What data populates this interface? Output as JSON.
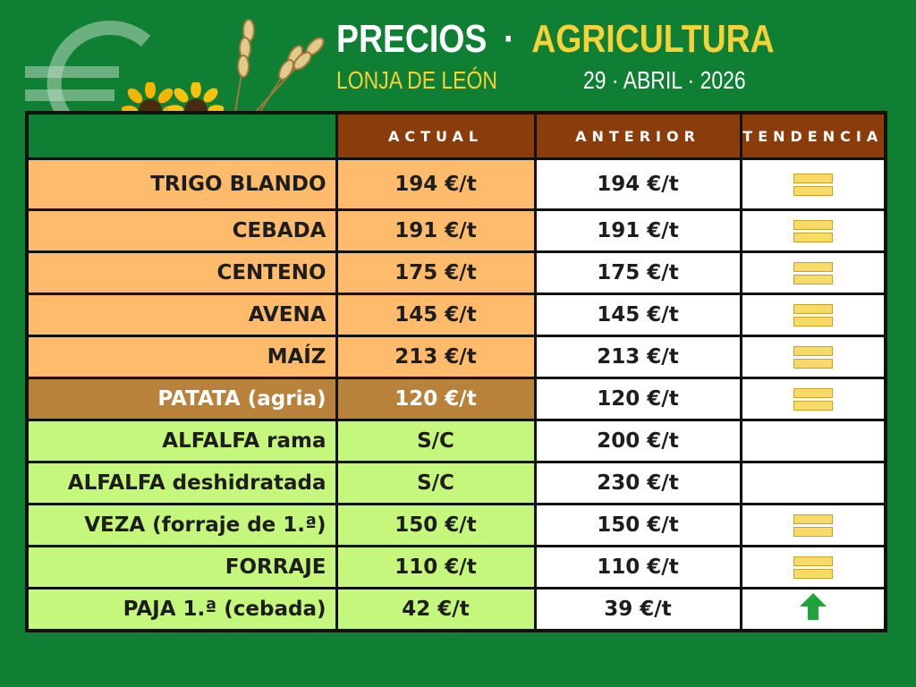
{
  "header": {
    "title_left": "PRECIOS",
    "title_sep": "·",
    "title_right": "AGRICULTURA",
    "subtitle": "LONJA DE LEÓN",
    "date": "29 · ABRIL · 2026"
  },
  "columns": [
    "ACTUAL",
    "ANTERIOR",
    "TENDENCIA"
  ],
  "rows": [
    {
      "name": "TRIGO BLANDO",
      "actual": "194 €/t",
      "anterior": "194 €/t",
      "trend": "equal"
    },
    {
      "name": "CEBADA",
      "actual": "191 €/t",
      "anterior": "191 €/t",
      "trend": "equal"
    },
    {
      "name": "CENTENO",
      "actual": "175 €/t",
      "anterior": "175 €/t",
      "trend": "equal"
    },
    {
      "name": "AVENA",
      "actual": "145 €/t",
      "anterior": "145 €/t",
      "trend": "equal"
    },
    {
      "name": "MAÍZ",
      "actual": "213 €/t",
      "anterior": "213 €/t",
      "trend": "equal"
    },
    {
      "name": "PATATA (agria)",
      "actual": "120 €/t",
      "anterior": "120 €/t",
      "trend": "equal"
    },
    {
      "name": "ALFALFA rama",
      "actual": "S/C",
      "anterior": "200 €/t",
      "trend": "none"
    },
    {
      "name": "ALFALFA deshidratada",
      "actual": "S/C",
      "anterior": "230 €/t",
      "trend": "none"
    },
    {
      "name": "VEZA (forraje de 1.ª)",
      "actual": "150 €/t",
      "anterior": "150 €/t",
      "trend": "equal"
    },
    {
      "name": "FORRAJE",
      "actual": "110 €/t",
      "anterior": "110 €/t",
      "trend": "equal"
    },
    {
      "name": "PAJA 1.ª (cebada)",
      "actual": "42 €/t",
      "anterior": "39 €/t",
      "trend": "up"
    }
  ],
  "colors": {
    "background": "#0e7f33",
    "header_cell": "#8a3d0a",
    "cereal_row": "#fdbb6b",
    "potato_row": "#b8823b",
    "forage_row": "#c6f77d",
    "equal_icon": "#f7da68",
    "up_icon": "#1fa33a"
  },
  "icons": [
    "euro-symbol-icon",
    "sunflower-icon",
    "wheat-ear-icon",
    "equal-trend-icon",
    "up-arrow-icon"
  ]
}
